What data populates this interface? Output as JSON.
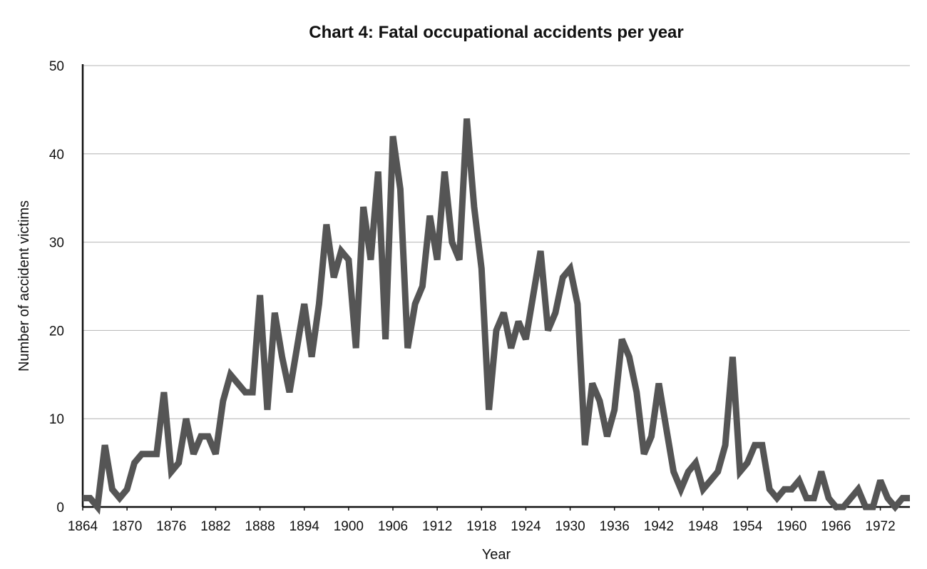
{
  "chart_data": {
    "type": "line",
    "title": "Chart 4: Fatal occupational accidents per year",
    "xlabel": "Year",
    "ylabel": "Number of accident victims",
    "x_ticks": [
      "1864",
      "1870",
      "1876",
      "1882",
      "1888",
      "1894",
      "1900",
      "1906",
      "1912",
      "1918",
      "1924",
      "1930",
      "1936",
      "1942",
      "1948",
      "1954",
      "1960",
      "1966",
      "1972"
    ],
    "y_ticks": [
      "0",
      "10",
      "20",
      "30",
      "40",
      "50"
    ],
    "xlim": [
      1864,
      1976
    ],
    "ylim": [
      0,
      50
    ],
    "grid": "horizontal",
    "line_color": "#555555",
    "x": [
      1864,
      1865,
      1866,
      1867,
      1868,
      1869,
      1870,
      1871,
      1872,
      1873,
      1874,
      1875,
      1876,
      1877,
      1878,
      1879,
      1880,
      1881,
      1882,
      1883,
      1884,
      1885,
      1886,
      1887,
      1888,
      1889,
      1890,
      1891,
      1892,
      1893,
      1894,
      1895,
      1896,
      1897,
      1898,
      1899,
      1900,
      1901,
      1902,
      1903,
      1904,
      1905,
      1906,
      1907,
      1908,
      1909,
      1910,
      1911,
      1912,
      1913,
      1914,
      1915,
      1916,
      1917,
      1918,
      1919,
      1920,
      1921,
      1922,
      1923,
      1924,
      1925,
      1926,
      1927,
      1928,
      1929,
      1930,
      1931,
      1932,
      1933,
      1934,
      1935,
      1936,
      1937,
      1938,
      1939,
      1940,
      1941,
      1942,
      1943,
      1944,
      1945,
      1946,
      1947,
      1948,
      1949,
      1950,
      1951,
      1952,
      1953,
      1954,
      1955,
      1956,
      1957,
      1958,
      1959,
      1960,
      1961,
      1962,
      1963,
      1964,
      1965,
      1966,
      1967,
      1968,
      1969,
      1970,
      1971,
      1972,
      1973,
      1974,
      1975,
      1976
    ],
    "series": [
      {
        "values": [
          1,
          1,
          0,
          7,
          2,
          1,
          2,
          5,
          6,
          6,
          6,
          13,
          4,
          5,
          10,
          6,
          8,
          8,
          6,
          12,
          15,
          14,
          13,
          13,
          24,
          11,
          22,
          17,
          13,
          18,
          23,
          17,
          23,
          32,
          26,
          29,
          28,
          18,
          34,
          28,
          38,
          19,
          42,
          36,
          18,
          23,
          25,
          33,
          28,
          38,
          30,
          28,
          44,
          34,
          27,
          11,
          20,
          22,
          18,
          21,
          19,
          24,
          29,
          20,
          22,
          26,
          27,
          23,
          7,
          14,
          12,
          8,
          11,
          19,
          17,
          13,
          6,
          8,
          14,
          9,
          4,
          2,
          4,
          5,
          2,
          3,
          4,
          7,
          17,
          4,
          5,
          7,
          7,
          2,
          1,
          2,
          2,
          3,
          1,
          1,
          4,
          1,
          0,
          0,
          1,
          2,
          0,
          0,
          3,
          1,
          0,
          1,
          1
        ]
      }
    ]
  }
}
